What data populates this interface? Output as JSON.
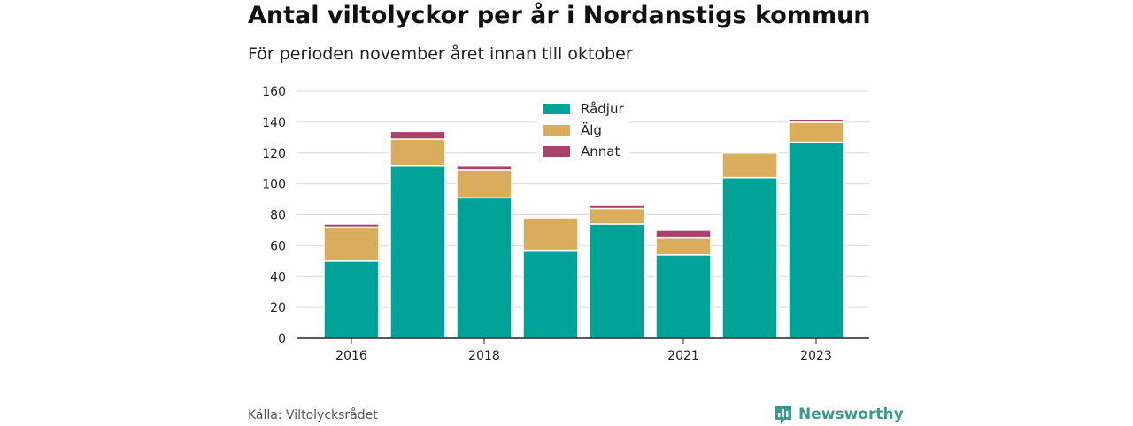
{
  "header": {
    "title": "Antal viltolyckor per år i Nordanstigs kommun",
    "subtitle": "För perioden november året innan till oktober"
  },
  "footer": {
    "source": "Källa: Viltolycksrådet",
    "brand": "Newsworthy",
    "brand_icon": "newsworthy-logo-icon"
  },
  "colors": {
    "Rådjur": "#00a398",
    "Älg": "#d9ad5b",
    "Annat": "#a8446b",
    "grid": "#d9d9d9",
    "axis": "#222222"
  },
  "chart_data": {
    "type": "bar",
    "stacked": true,
    "categories": [
      "2016",
      "2017",
      "2018",
      "2019",
      "2020",
      "2021",
      "2022",
      "2023"
    ],
    "x_tick_labels": [
      "2016",
      "2018",
      "2021",
      "2023"
    ],
    "series": [
      {
        "name": "Rådjur",
        "values": [
          50,
          112,
          91,
          57,
          74,
          54,
          104,
          127
        ]
      },
      {
        "name": "Älg",
        "values": [
          22,
          17,
          18,
          21,
          10,
          11,
          16,
          13
        ]
      },
      {
        "name": "Annat",
        "values": [
          2,
          5,
          3,
          0,
          2,
          5,
          0,
          2
        ]
      }
    ],
    "ylim": [
      0,
      160
    ],
    "yticks": [
      0,
      20,
      40,
      60,
      80,
      100,
      120,
      140,
      160
    ],
    "grid": true,
    "legend_position": "top-center"
  }
}
